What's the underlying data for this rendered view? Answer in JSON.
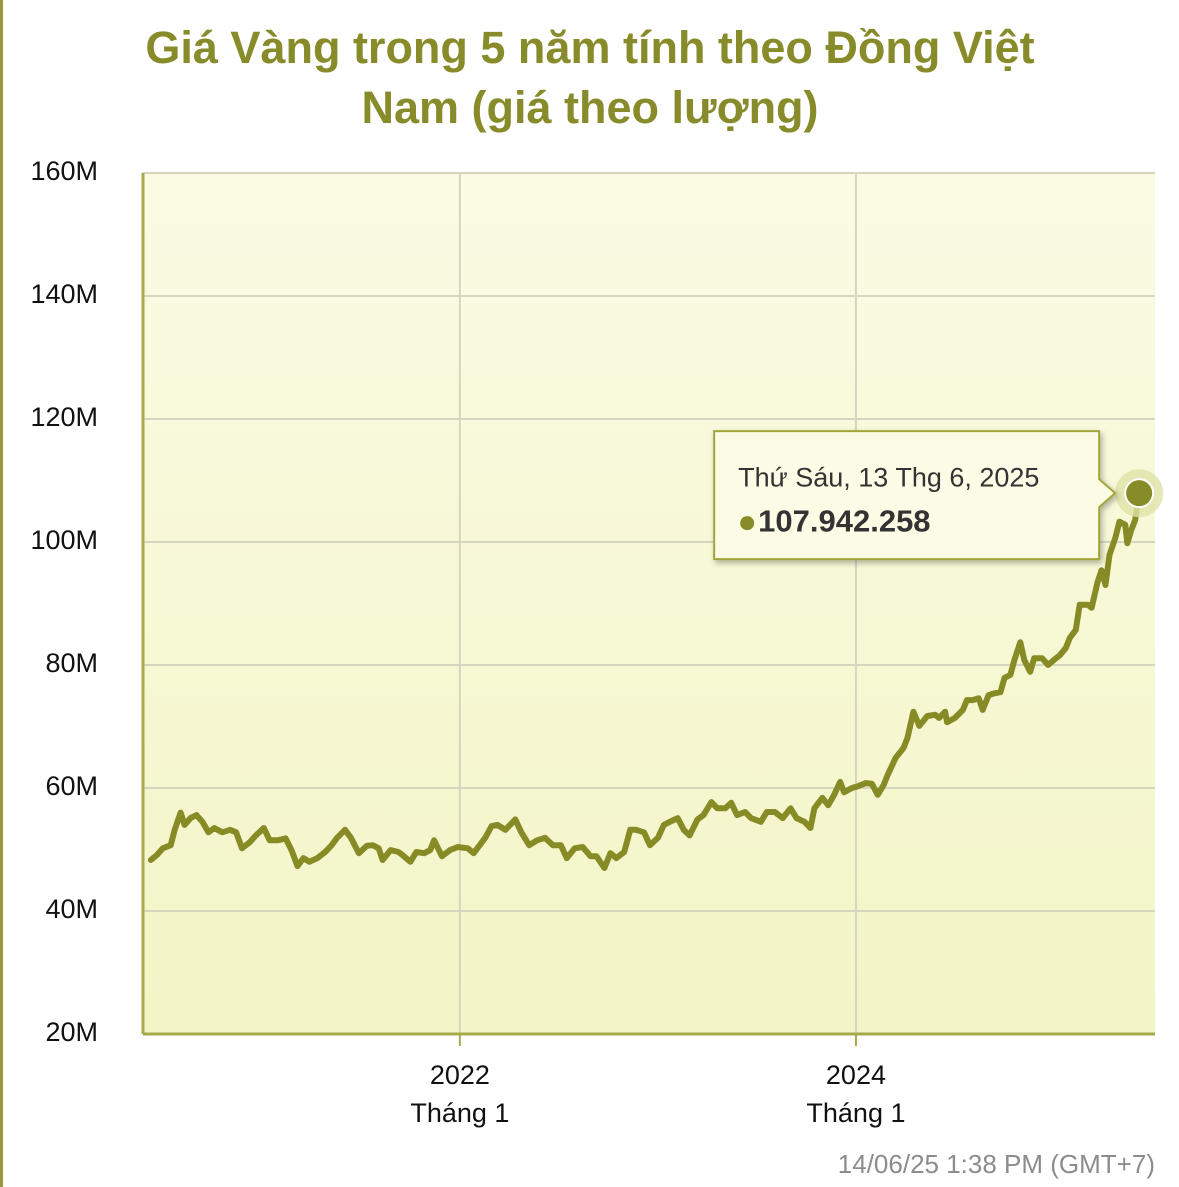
{
  "chart_data": {
    "type": "line",
    "title": "Giá Vàng trong 5 năm tính theo Đồng Việt Nam (giá theo lượng)",
    "color": "#878b26",
    "grid": true,
    "ylim": [
      20000000,
      160000000
    ],
    "yticks": [
      {
        "value": 20000000,
        "label": "20M"
      },
      {
        "value": 40000000,
        "label": "40M"
      },
      {
        "value": 60000000,
        "label": "60M"
      },
      {
        "value": 80000000,
        "label": "80M"
      },
      {
        "value": 100000000,
        "label": "100M"
      },
      {
        "value": 120000000,
        "label": "120M"
      },
      {
        "value": 140000000,
        "label": "140M"
      },
      {
        "value": 160000000,
        "label": "160M"
      }
    ],
    "xlim": [
      2020.4,
      2025.51
    ],
    "xticks": [
      2022,
      2024
    ],
    "xtick_sublabels": [
      "Tháng 1",
      "Tháng 1"
    ],
    "x": [
      2020.44,
      2020.47,
      2020.5,
      2020.54,
      2020.56,
      2020.59,
      2020.61,
      2020.64,
      2020.67,
      2020.7,
      2020.73,
      2020.76,
      2020.8,
      2020.84,
      2020.87,
      2020.9,
      2020.94,
      2020.97,
      2021.01,
      2021.04,
      2021.08,
      2021.12,
      2021.15,
      2021.18,
      2021.21,
      2021.24,
      2021.28,
      2021.32,
      2021.35,
      2021.38,
      2021.42,
      2021.45,
      2021.49,
      2021.53,
      2021.56,
      2021.59,
      2021.61,
      2021.65,
      2021.69,
      2021.71,
      2021.75,
      2021.78,
      2021.82,
      2021.85,
      2021.87,
      2021.91,
      2021.95,
      2021.99,
      2022.04,
      2022.07,
      2022.1,
      2022.13,
      2022.16,
      2022.19,
      2022.23,
      2022.28,
      2022.31,
      2022.35,
      2022.39,
      2022.43,
      2022.47,
      2022.51,
      2022.54,
      2022.58,
      2022.62,
      2022.66,
      2022.69,
      2022.73,
      2022.76,
      2022.79,
      2022.83,
      2022.86,
      2022.89,
      2022.93,
      2022.96,
      2023.0,
      2023.03,
      2023.06,
      2023.1,
      2023.13,
      2023.16,
      2023.2,
      2023.23,
      2023.27,
      2023.3,
      2023.34,
      2023.37,
      2023.4,
      2023.44,
      2023.47,
      2023.52,
      2023.55,
      2023.59,
      2023.63,
      2023.67,
      2023.7,
      2023.74,
      2023.77,
      2023.79,
      2023.83,
      2023.86,
      2023.89,
      2023.92,
      2023.94,
      2023.98,
      2024.01,
      2024.05,
      2024.08,
      2024.11,
      2024.14,
      2024.16,
      2024.2,
      2024.24,
      2024.26,
      2024.29,
      2024.32,
      2024.36,
      2024.4,
      2024.42,
      2024.45,
      2024.46,
      2024.5,
      2024.54,
      2024.56,
      2024.59,
      2024.62,
      2024.64,
      2024.67,
      2024.7,
      2024.73,
      2024.75,
      2024.78,
      2024.8,
      2024.83,
      2024.85,
      2024.88,
      2024.9,
      2024.94,
      2024.97,
      2025.01,
      2025.03,
      2025.06,
      2025.08,
      2025.11,
      2025.13,
      2025.17,
      2025.19,
      2025.22,
      2025.24,
      2025.26,
      2025.28,
      2025.31,
      2025.33,
      2025.36,
      2025.37,
      2025.39,
      2025.41,
      2025.43
    ],
    "values": [
      48300000,
      49100000,
      50200000,
      50700000,
      53200000,
      56000000,
      54000000,
      55100000,
      55600000,
      54500000,
      52800000,
      53500000,
      52800000,
      53200000,
      52800000,
      50200000,
      51200000,
      52300000,
      53500000,
      51500000,
      51500000,
      51800000,
      49900000,
      47300000,
      48600000,
      48000000,
      48600000,
      49600000,
      50600000,
      51900000,
      53200000,
      51900000,
      49400000,
      50600000,
      50700000,
      50200000,
      48300000,
      49900000,
      49600000,
      49100000,
      48000000,
      49600000,
      49400000,
      49900000,
      51500000,
      48900000,
      49900000,
      50400000,
      50200000,
      49400000,
      50700000,
      52000000,
      53800000,
      54000000,
      53200000,
      54900000,
      52800000,
      50700000,
      51500000,
      51900000,
      50700000,
      50700000,
      48600000,
      50200000,
      50400000,
      48900000,
      48900000,
      47000000,
      49400000,
      48600000,
      49600000,
      53200000,
      53200000,
      52800000,
      50700000,
      51900000,
      54000000,
      54500000,
      55100000,
      53200000,
      52300000,
      54900000,
      55600000,
      57700000,
      56700000,
      56700000,
      57600000,
      55600000,
      56100000,
      55100000,
      54500000,
      56100000,
      56100000,
      55100000,
      56700000,
      55100000,
      54500000,
      53500000,
      56700000,
      58400000,
      57200000,
      58900000,
      61000000,
      59300000,
      60000000,
      60300000,
      60800000,
      60700000,
      58900000,
      60500000,
      62100000,
      64900000,
      66500000,
      68100000,
      72400000,
      70100000,
      71700000,
      71900000,
      71400000,
      72400000,
      70700000,
      71400000,
      72700000,
      74300000,
      74300000,
      74600000,
      72700000,
      75100000,
      75400000,
      75600000,
      77900000,
      78400000,
      80800000,
      83700000,
      80800000,
      78900000,
      81100000,
      81100000,
      80000000,
      81100000,
      81600000,
      82800000,
      84400000,
      85700000,
      89800000,
      89800000,
      89300000,
      93500000,
      95400000,
      93000000,
      97900000,
      100700000,
      103300000,
      102800000,
      99800000,
      101900000,
      103600000,
      107942258
    ],
    "tooltip": {
      "date": "Thứ Sáu, 13 Thg 6, 2025",
      "value_label": "107.942.258"
    },
    "footnote": "14/06/25 1:38 PM (GMT+7)"
  }
}
